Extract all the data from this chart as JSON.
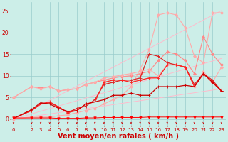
{
  "bg_color": "#cceee8",
  "grid_color": "#99cccc",
  "xlabel": "Vent moyen/en rafales ( km/h )",
  "xlabel_color": "#cc0000",
  "xlabel_fontsize": 7,
  "tick_color": "#cc0000",
  "yticks": [
    0,
    5,
    10,
    15,
    20,
    25
  ],
  "xticks": [
    0,
    2,
    3,
    4,
    5,
    6,
    7,
    8,
    9,
    10,
    11,
    12,
    13,
    14,
    15,
    16,
    17,
    18,
    19,
    20,
    21,
    22,
    23
  ],
  "ylim": [
    -1.5,
    27
  ],
  "xlim": [
    -0.3,
    23.5
  ],
  "lines": [
    {
      "x": [
        0,
        23
      ],
      "y": [
        0.0,
        25.0
      ],
      "color": "#ffbbcc",
      "lw": 0.7,
      "marker": null,
      "ms": 0
    },
    {
      "x": [
        0,
        23
      ],
      "y": [
        0.0,
        14.0
      ],
      "color": "#ffbbcc",
      "lw": 0.7,
      "marker": null,
      "ms": 0
    },
    {
      "x": [
        0,
        23
      ],
      "y": [
        0.0,
        7.0
      ],
      "color": "#ffbbcc",
      "lw": 0.7,
      "marker": null,
      "ms": 0
    },
    {
      "x": [
        0,
        2,
        3,
        4,
        5,
        6,
        7,
        8,
        9,
        10,
        11,
        12,
        13,
        14,
        15,
        16,
        17,
        18,
        19,
        20,
        21,
        22,
        23
      ],
      "y": [
        0.0,
        0.5,
        0.5,
        0.5,
        0.8,
        1.0,
        1.5,
        2.0,
        2.5,
        3.5,
        4.5,
        5.5,
        7.5,
        11.5,
        16.0,
        24.0,
        24.5,
        24.0,
        21.0,
        14.5,
        13.0,
        24.5,
        24.5
      ],
      "color": "#ffaaaa",
      "lw": 0.8,
      "marker": "D",
      "ms": 2
    },
    {
      "x": [
        0,
        2,
        3,
        4,
        5,
        6,
        7,
        8,
        9,
        10,
        11,
        12,
        13,
        14,
        15,
        16,
        17,
        18,
        19,
        20,
        21,
        22,
        23
      ],
      "y": [
        5.0,
        7.5,
        7.2,
        7.5,
        6.5,
        6.8,
        7.0,
        8.0,
        8.5,
        9.0,
        9.5,
        9.8,
        10.0,
        10.5,
        11.0,
        13.5,
        15.5,
        15.0,
        13.5,
        10.5,
        19.0,
        15.0,
        12.5
      ],
      "color": "#ff8888",
      "lw": 0.8,
      "marker": "D",
      "ms": 2
    },
    {
      "x": [
        0,
        2,
        3,
        4,
        5,
        6,
        7,
        8,
        9,
        10,
        11,
        12,
        13,
        14,
        15,
        16,
        17,
        18,
        19,
        20,
        21,
        22,
        23
      ],
      "y": [
        5.0,
        7.5,
        7.0,
        7.5,
        6.5,
        6.8,
        7.0,
        8.0,
        8.5,
        9.5,
        9.8,
        10.2,
        10.5,
        11.0,
        11.5,
        10.0,
        12.5,
        12.5,
        12.0,
        7.5,
        11.0,
        8.5,
        12.0
      ],
      "color": "#ffaaaa",
      "lw": 0.8,
      "marker": "D",
      "ms": 2
    },
    {
      "x": [
        0,
        2,
        3,
        4,
        5,
        6,
        7,
        8,
        9,
        10,
        11,
        12,
        13,
        14,
        15,
        16,
        17,
        18,
        19,
        20,
        21,
        22,
        23
      ],
      "y": [
        0.2,
        2.0,
        3.5,
        3.8,
        2.8,
        1.5,
        2.5,
        3.0,
        4.5,
        8.0,
        8.5,
        9.0,
        9.0,
        9.5,
        15.0,
        14.5,
        13.0,
        12.5,
        12.0,
        8.0,
        10.5,
        9.0,
        6.5
      ],
      "color": "#dd2222",
      "lw": 0.9,
      "marker": "+",
      "ms": 3.5
    },
    {
      "x": [
        0,
        2,
        3,
        4,
        5,
        6,
        7,
        8,
        9,
        10,
        11,
        12,
        13,
        14,
        15,
        16,
        17,
        18,
        19,
        20,
        21,
        22,
        23
      ],
      "y": [
        0.2,
        2.0,
        3.5,
        4.0,
        2.8,
        1.5,
        2.0,
        3.5,
        4.0,
        8.5,
        9.0,
        9.0,
        8.5,
        9.0,
        9.5,
        9.5,
        12.5,
        12.5,
        12.0,
        7.5,
        10.5,
        8.5,
        6.5
      ],
      "color": "#ff2222",
      "lw": 0.9,
      "marker": "+",
      "ms": 3.5
    },
    {
      "x": [
        0,
        2,
        3,
        4,
        5,
        6,
        7,
        8,
        9,
        10,
        11,
        12,
        13,
        14,
        15,
        16,
        17,
        18,
        19,
        20,
        21,
        22,
        23
      ],
      "y": [
        0.2,
        2.2,
        3.8,
        3.5,
        2.5,
        1.8,
        2.0,
        3.5,
        4.0,
        4.5,
        5.5,
        5.5,
        6.0,
        5.5,
        5.5,
        7.5,
        7.5,
        7.5,
        7.8,
        7.5,
        10.5,
        8.5,
        6.5
      ],
      "color": "#cc0000",
      "lw": 0.9,
      "marker": "+",
      "ms": 3.5
    },
    {
      "x": [
        0,
        2,
        3,
        4,
        5,
        6,
        7,
        8,
        9,
        10,
        11,
        12,
        13,
        14,
        15,
        16,
        17,
        18,
        19,
        20,
        21,
        22,
        23
      ],
      "y": [
        0.3,
        0.3,
        0.3,
        0.3,
        0.2,
        0.2,
        0.2,
        0.3,
        0.3,
        0.4,
        0.4,
        0.4,
        0.4,
        0.4,
        0.5,
        0.5,
        0.5,
        0.5,
        0.5,
        0.5,
        0.5,
        0.5,
        0.5
      ],
      "color": "#ff0000",
      "lw": 0.7,
      "marker": "v",
      "ms": 2.5
    }
  ],
  "wind_arrows": [
    0,
    2,
    3,
    4,
    5,
    6,
    7,
    8,
    9,
    10,
    11,
    12,
    13,
    14,
    15,
    16,
    17,
    18,
    19,
    20,
    21,
    22,
    23
  ],
  "arrow_color": "#cc0000"
}
